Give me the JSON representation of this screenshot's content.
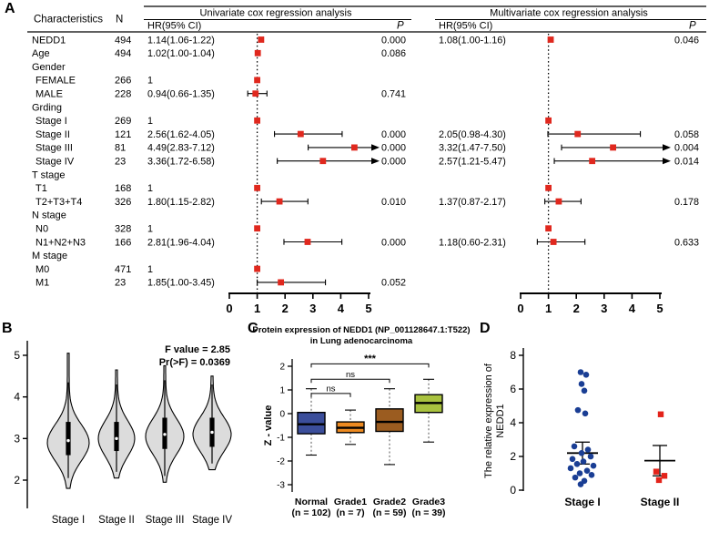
{
  "chart_data": [
    {
      "id": "A",
      "type": "forest",
      "panel_label": "A",
      "headers": {
        "characteristics": "Characteristics",
        "n": "N",
        "univariate_title": "Univariate cox regression analysis",
        "multivariate_title": "Multivariate cox regression analysis",
        "hr_ci": "HR(95% CI)",
        "p": "P"
      },
      "axis": {
        "ticks": [
          0,
          1,
          2,
          3,
          4,
          5
        ],
        "max": 5,
        "ref_line": 1
      },
      "marker_color": "#e0281e",
      "rows": [
        {
          "label": "NEDD1",
          "type": "data",
          "indent": 0,
          "n": "494",
          "uni": {
            "text": "1.14(1.06-1.22)",
            "est": 1.14,
            "lo": 1.06,
            "hi": 1.22,
            "p": "0.000"
          },
          "multi": {
            "text": "1.08(1.00-1.16)",
            "est": 1.08,
            "lo": 1.0,
            "hi": 1.16,
            "p": "0.046"
          }
        },
        {
          "label": "Age",
          "type": "data",
          "indent": 0,
          "n": "494",
          "uni": {
            "text": "1.02(1.00-1.04)",
            "est": 1.02,
            "lo": 1.0,
            "hi": 1.04,
            "p": "0.086"
          }
        },
        {
          "label": "Gender",
          "type": "group"
        },
        {
          "label": "FEMALE",
          "type": "data",
          "indent": 1,
          "n": "266",
          "uni": {
            "text": "1",
            "est": 1,
            "ref": true
          }
        },
        {
          "label": "MALE",
          "type": "data",
          "indent": 1,
          "n": "228",
          "uni": {
            "text": "0.94(0.66-1.35)",
            "est": 0.94,
            "lo": 0.66,
            "hi": 1.35,
            "p": "0.741"
          }
        },
        {
          "label": "Grding",
          "type": "group"
        },
        {
          "label": "Stage I",
          "type": "data",
          "indent": 1,
          "n": "269",
          "uni": {
            "text": "1",
            "est": 1,
            "ref": true
          },
          "multi": {
            "est": 1,
            "ref": true
          }
        },
        {
          "label": "Stage II",
          "type": "data",
          "indent": 1,
          "n": "121",
          "uni": {
            "text": "2.56(1.62-4.05)",
            "est": 2.56,
            "lo": 1.62,
            "hi": 4.05,
            "p": "0.000"
          },
          "multi": {
            "text": "2.05(0.98-4.30)",
            "est": 2.05,
            "lo": 0.98,
            "hi": 4.3,
            "p": "0.058"
          }
        },
        {
          "label": "Stage III",
          "type": "data",
          "indent": 1,
          "n": "81",
          "uni": {
            "text": "4.49(2.83-7.12)",
            "est": 4.49,
            "lo": 2.83,
            "hi": 7.12,
            "p": "0.000"
          },
          "multi": {
            "text": "3.32(1.47-7.50)",
            "est": 3.32,
            "lo": 1.47,
            "hi": 7.5,
            "p": "0.004"
          }
        },
        {
          "label": "Stage IV",
          "type": "data",
          "indent": 1,
          "n": "23",
          "uni": {
            "text": "3.36(1.72-6.58)",
            "est": 3.36,
            "lo": 1.72,
            "hi": 6.58,
            "p": "0.000"
          },
          "multi": {
            "text": "2.57(1.21-5.47)",
            "est": 2.57,
            "lo": 1.21,
            "hi": 5.47,
            "p": "0.014"
          }
        },
        {
          "label": "T stage",
          "type": "group"
        },
        {
          "label": "T1",
          "type": "data",
          "indent": 1,
          "n": "168",
          "uni": {
            "text": "1",
            "est": 1,
            "ref": true
          },
          "multi": {
            "est": 1,
            "ref": true
          }
        },
        {
          "label": "T2+T3+T4",
          "type": "data",
          "indent": 1,
          "n": "326",
          "uni": {
            "text": "1.80(1.15-2.82)",
            "est": 1.8,
            "lo": 1.15,
            "hi": 2.82,
            "p": "0.010"
          },
          "multi": {
            "text": "1.37(0.87-2.17)",
            "est": 1.37,
            "lo": 0.87,
            "hi": 2.17,
            "p": "0.178"
          }
        },
        {
          "label": "N stage",
          "type": "group"
        },
        {
          "label": "N0",
          "type": "data",
          "indent": 1,
          "n": "328",
          "uni": {
            "text": "1",
            "est": 1,
            "ref": true
          },
          "multi": {
            "est": 1,
            "ref": true
          }
        },
        {
          "label": "N1+N2+N3",
          "type": "data",
          "indent": 1,
          "n": "166",
          "uni": {
            "text": "2.81(1.96-4.04)",
            "est": 2.81,
            "lo": 1.96,
            "hi": 4.04,
            "p": "0.000"
          },
          "multi": {
            "text": "1.18(0.60-2.31)",
            "est": 1.18,
            "lo": 0.6,
            "hi": 2.31,
            "p": "0.633"
          }
        },
        {
          "label": "M stage",
          "type": "group"
        },
        {
          "label": "M0",
          "type": "data",
          "indent": 1,
          "n": "471",
          "uni": {
            "text": "1",
            "est": 1,
            "ref": true
          }
        },
        {
          "label": "M1",
          "type": "data",
          "indent": 1,
          "n": "23",
          "uni": {
            "text": "1.85(1.00-3.45)",
            "est": 1.85,
            "lo": 1.0,
            "hi": 3.45,
            "p": "0.052"
          }
        }
      ]
    },
    {
      "id": "B",
      "type": "violin",
      "panel_label": "B",
      "annotation_lines": [
        "F value = 2.85",
        "Pr(>F) = 0.0369"
      ],
      "categories": [
        "Stage I",
        "Stage II",
        "Stage III",
        "Stage IV"
      ],
      "yticks": [
        2,
        3,
        4,
        5
      ],
      "ylim": [
        1.5,
        5.3
      ],
      "fill": "#dcdcdc",
      "violins": [
        {
          "category": "Stage I",
          "min": 1.8,
          "max": 5.05,
          "peak": 2.9,
          "sigma": 0.62,
          "hw": 23,
          "q1": 2.6,
          "q3": 3.4,
          "median": 2.95,
          "wlo": 2.05,
          "whi": 4.35
        },
        {
          "category": "Stage II",
          "min": 2.05,
          "max": 4.65,
          "peak": 3.0,
          "sigma": 0.6,
          "hw": 20,
          "q1": 2.7,
          "q3": 3.4,
          "median": 3.0,
          "wlo": 2.2,
          "whi": 4.3
        },
        {
          "category": "Stage III",
          "min": 1.95,
          "max": 4.75,
          "peak": 3.05,
          "sigma": 0.6,
          "hw": 21,
          "q1": 2.75,
          "q3": 3.5,
          "median": 3.1,
          "wlo": 2.1,
          "whi": 4.4
        },
        {
          "category": "Stage IV",
          "min": 2.25,
          "max": 4.5,
          "peak": 3.1,
          "sigma": 0.58,
          "hw": 21,
          "q1": 2.8,
          "q3": 3.5,
          "median": 3.15,
          "wlo": 2.4,
          "whi": 4.3
        }
      ]
    },
    {
      "id": "C",
      "type": "box",
      "panel_label": "C",
      "title_lines": [
        "Protein expression of NEDD1 (NP_001128647.1:T522)",
        "in Lung adenocarcinoma"
      ],
      "ylabel": "Z - value",
      "yticks": [
        -3,
        -2,
        -1,
        0,
        1,
        2
      ],
      "ylim": [
        -3.3,
        2.3
      ],
      "groups": [
        {
          "name": "Normal",
          "count": "(n = 102)",
          "color": "#3b4e9b",
          "q1": -0.85,
          "q3": 0.05,
          "median": -0.45,
          "wlo": -1.75,
          "whi": 1.05
        },
        {
          "name": "Grade1",
          "count": "(n = 7)",
          "color": "#ec8a21",
          "q1": -0.8,
          "q3": -0.35,
          "median": -0.6,
          "wlo": -1.3,
          "whi": 0.15
        },
        {
          "name": "Grade2",
          "count": "(n = 59)",
          "color": "#9b5c20",
          "q1": -0.75,
          "q3": 0.2,
          "median": -0.35,
          "wlo": -2.15,
          "whi": 1.05
        },
        {
          "name": "Grade3",
          "count": "(n = 39)",
          "color": "#a9c23f",
          "q1": 0.05,
          "q3": 0.8,
          "median": 0.45,
          "wlo": -1.2,
          "whi": 1.45
        }
      ],
      "comparisons": [
        {
          "from": 0,
          "to": 1,
          "label": "ns",
          "y": 0.85
        },
        {
          "from": 0,
          "to": 2,
          "label": "ns",
          "y": 1.45
        },
        {
          "from": 0,
          "to": 3,
          "label": "***",
          "y": 2.1
        }
      ]
    },
    {
      "id": "D",
      "type": "scatter",
      "panel_label": "D",
      "ylabel_lines": [
        "The relative expression of",
        "NEDD1"
      ],
      "yticks": [
        0,
        2,
        4,
        6,
        8
      ],
      "ylim": [
        0,
        8.4
      ],
      "groups": [
        {
          "name": "Stage I",
          "marker": "circle",
          "color": "#1a3e94",
          "mean": 2.2,
          "err_lo": 1.55,
          "err_hi": 2.85,
          "points": [
            [
              -2,
              7.0
            ],
            [
              4,
              6.85
            ],
            [
              -1,
              6.3
            ],
            [
              2,
              5.9
            ],
            [
              -5,
              4.75
            ],
            [
              3,
              4.55
            ],
            [
              -9,
              2.6
            ],
            [
              6,
              2.4
            ],
            [
              -1,
              2.2
            ],
            [
              9,
              2.0
            ],
            [
              -11,
              1.85
            ],
            [
              1,
              1.7
            ],
            [
              -6,
              1.55
            ],
            [
              12,
              1.45
            ],
            [
              -13,
              1.3
            ],
            [
              5,
              1.15
            ],
            [
              -3,
              1.0
            ],
            [
              10,
              0.9
            ],
            [
              -8,
              0.75
            ],
            [
              2,
              0.55
            ],
            [
              -2,
              0.35
            ]
          ]
        },
        {
          "name": "Stage II",
          "marker": "square",
          "color": "#e3231a",
          "mean": 1.75,
          "err_lo": 0.85,
          "err_hi": 2.65,
          "points": [
            [
              1,
              4.5
            ],
            [
              -4,
              1.1
            ],
            [
              5,
              0.85
            ],
            [
              -1,
              0.6
            ]
          ]
        }
      ]
    }
  ]
}
